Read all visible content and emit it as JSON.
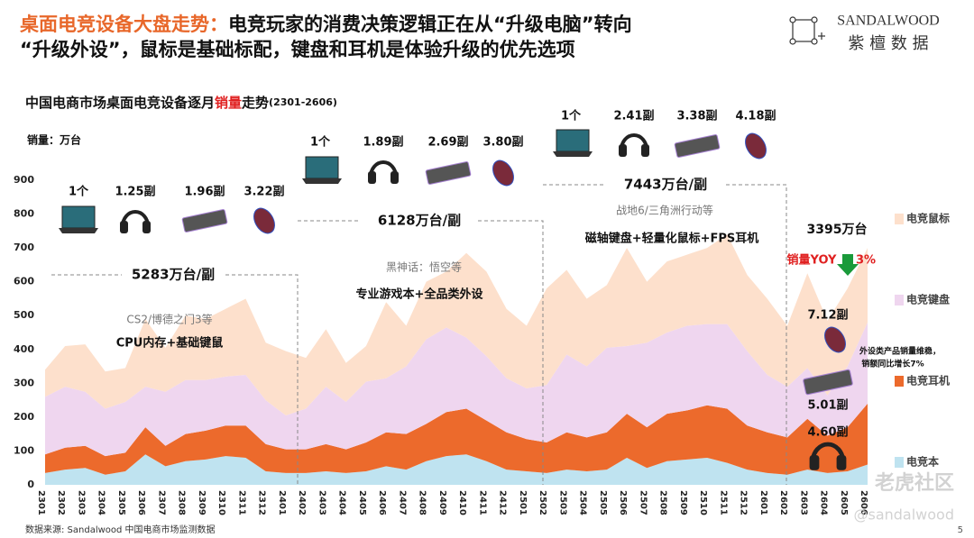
{
  "header": {
    "title": [
      "桌面电竞设备大盘走势：",
      "电竞玩家的消费决策逻辑正在从“升级电脑”转向",
      "“升级外设”，鼠标是基础标配，键盘和耳机是体验升级的优先选项"
    ],
    "logo": [
      "SANDALWOOD",
      "紫 檀 数 据"
    ]
  },
  "chart_data": {
    "type": "area",
    "title": [
      "中国电商市场桌面电竞设备逐月",
      "销量",
      "走势",
      "(2301-2606)"
    ],
    "ylabel": "销量：万台",
    "categories": [
      "2301",
      "2302",
      "2303",
      "2304",
      "2305",
      "2306",
      "2307",
      "2308",
      "2309",
      "2310",
      "2311",
      "2312",
      "2401",
      "2402",
      "2403",
      "2404",
      "2405",
      "2406",
      "2407",
      "2408",
      "2409",
      "2410",
      "2411",
      "2412",
      "2501",
      "2502",
      "2503",
      "2504",
      "2505",
      "2506",
      "2507",
      "2508",
      "2509",
      "2510",
      "2511",
      "2512",
      "2601",
      "2602",
      "2603",
      "2604",
      "2605",
      "2606"
    ],
    "ylim": [
      0,
      900
    ],
    "yticks": [
      0,
      100,
      200,
      300,
      400,
      500,
      600,
      700,
      800,
      900
    ],
    "stacked": true,
    "series": [
      {
        "name": "电竞本",
        "color": "#bfe3f0",
        "values": [
          35,
          45,
          50,
          30,
          40,
          90,
          55,
          70,
          75,
          85,
          80,
          40,
          35,
          35,
          40,
          35,
          40,
          55,
          45,
          70,
          85,
          90,
          70,
          45,
          40,
          35,
          45,
          40,
          45,
          80,
          50,
          70,
          75,
          80,
          65,
          45,
          35,
          30,
          45,
          35,
          40,
          60
        ]
      },
      {
        "name": "电竞耳机",
        "color": "#ec6a2c",
        "values": [
          55,
          65,
          65,
          55,
          55,
          80,
          60,
          80,
          85,
          90,
          95,
          80,
          70,
          70,
          80,
          70,
          85,
          100,
          105,
          110,
          130,
          135,
          120,
          110,
          95,
          90,
          110,
          100,
          110,
          130,
          120,
          140,
          145,
          155,
          160,
          130,
          120,
          110,
          150,
          110,
          130,
          180
        ]
      },
      {
        "name": "电竞键盘",
        "color": "#efd6ef",
        "values": [
          170,
          180,
          160,
          140,
          150,
          120,
          160,
          160,
          150,
          145,
          150,
          130,
          100,
          120,
          170,
          140,
          180,
          160,
          200,
          250,
          250,
          210,
          190,
          160,
          150,
          170,
          230,
          210,
          250,
          200,
          250,
          240,
          250,
          240,
          250,
          220,
          170,
          150,
          150,
          120,
          180,
          240
        ]
      },
      {
        "name": "电竞鼠标",
        "color": "#fde0cc",
        "values": [
          80,
          120,
          140,
          110,
          100,
          200,
          130,
          190,
          180,
          200,
          225,
          170,
          190,
          150,
          170,
          115,
          105,
          225,
          120,
          170,
          165,
          250,
          250,
          205,
          185,
          285,
          250,
          200,
          185,
          290,
          180,
          210,
          210,
          225,
          265,
          225,
          225,
          180,
          280,
          220,
          230,
          220
        ]
      }
    ],
    "annotations": [
      "1个",
      "1.25副",
      "1.96副",
      "3.22副",
      "5283万台/副",
      "CS2/博德之门3等",
      "CPU内存+基础键鼠",
      "1个",
      "1.89副",
      "2.69副",
      "3.80副",
      "6128万台/副",
      "黑神话：悟空等",
      "专业游戏本+全品类外设",
      "1个",
      "2.41副",
      "3.38副",
      "4.18副",
      "7443万台/副",
      "战地6/三角洲行动等",
      "磁轴键盘+轻量化鼠标+FPS耳机",
      "3395万台",
      "销量YOY",
      "3%",
      "7.12副",
      "外设类产品销量维稳，",
      "销额同比增长7%",
      "5.01副",
      "4.60副"
    ],
    "source": "数据来源: Sandalwood 中国电商市场监测数据"
  },
  "page_number": "5",
  "watermark": [
    "老虎社区",
    "@sandalwood"
  ]
}
